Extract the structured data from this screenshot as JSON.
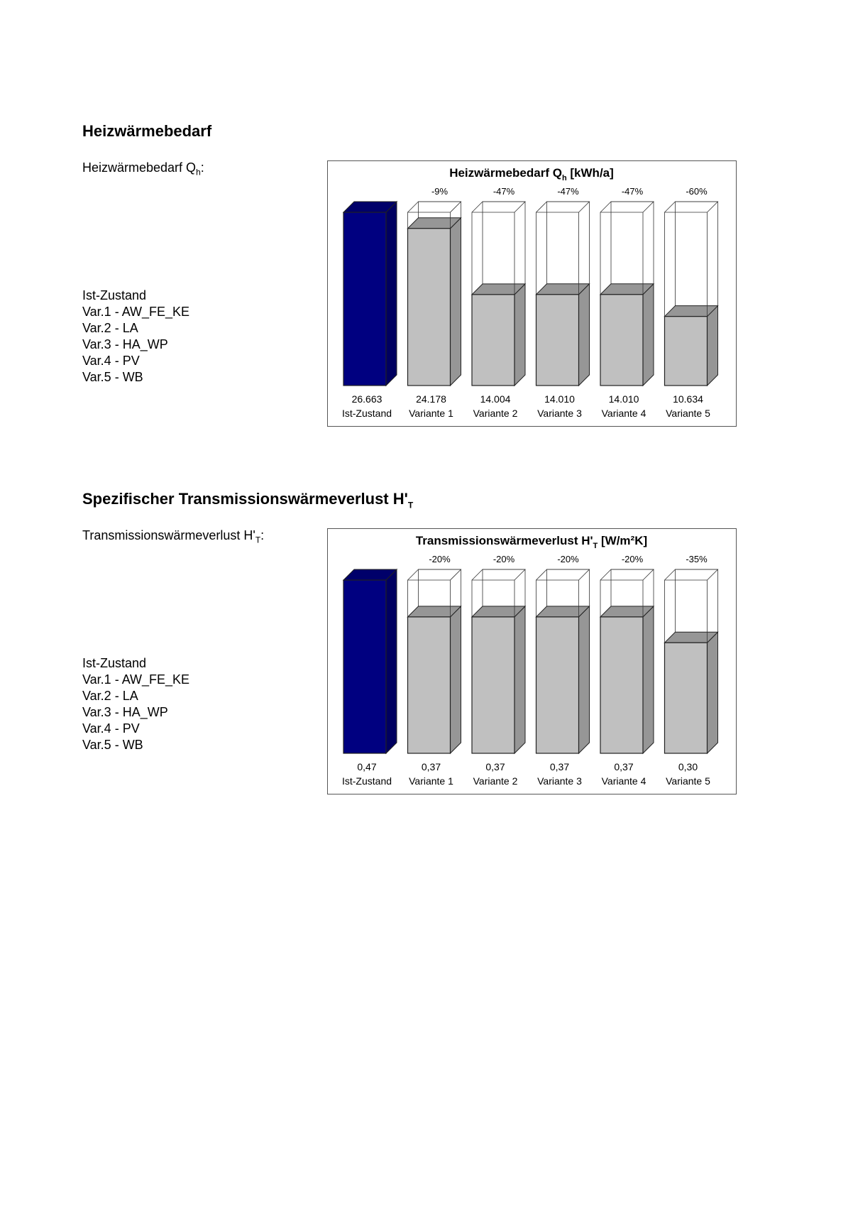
{
  "sections": [
    {
      "heading": "Heizwärmebedarf",
      "heading_sub": "",
      "label": "Heizwärmebedarf Q",
      "label_sub": "h",
      "label_suffix": ":",
      "legend": [
        "Ist-Zustand",
        "Var.1 - AW_FE_KE",
        "Var.2 - LA",
        "Var.3 - HA_WP",
        "Var.4 - PV",
        "Var.5 - WB"
      ]
    },
    {
      "heading": "Spezifischer Transmissionswärmeverlust H'",
      "heading_sub": "T",
      "label": "Transmissionswärmeverlust H'",
      "label_sub": "T",
      "label_suffix": ":",
      "legend": [
        "Ist-Zustand",
        "Var.1 - AW_FE_KE",
        "Var.2 - LA",
        "Var.3 - HA_WP",
        "Var.4 - PV",
        "Var.5 - WB"
      ]
    }
  ],
  "colors": {
    "baseline_bar": "#000080",
    "variant_bar": "#c0c0c0",
    "variant_side": "#969696"
  },
  "chart_data": [
    {
      "type": "bar",
      "title": "Heizwärmebedarf Q",
      "title_sub": "h",
      "title_unit": "[kWh/a]",
      "categories": [
        "Ist-Zustand",
        "Variante 1",
        "Variante 2",
        "Variante 3",
        "Variante 4",
        "Variante 5"
      ],
      "values": [
        26663,
        24178,
        14004,
        14010,
        14010,
        10634
      ],
      "value_labels": [
        "26.663",
        "24.178",
        "14.004",
        "14.010",
        "14.010",
        "10.634"
      ],
      "change_labels": [
        "",
        "-9%",
        "-47%",
        "-47%",
        "-47%",
        "-60%"
      ],
      "ylim": [
        0,
        26663
      ]
    },
    {
      "type": "bar",
      "title": "Transmissionswärmeverlust H'",
      "title_sub": "T",
      "title_unit": "[W/m²K]",
      "categories": [
        "Ist-Zustand",
        "Variante 1",
        "Variante 2",
        "Variante 3",
        "Variante 4",
        "Variante 5"
      ],
      "values": [
        0.47,
        0.37,
        0.37,
        0.37,
        0.37,
        0.3
      ],
      "value_labels": [
        "0,47",
        "0,37",
        "0,37",
        "0,37",
        "0,37",
        "0,30"
      ],
      "change_labels": [
        "",
        "-20%",
        "-20%",
        "-20%",
        "-20%",
        "-35%"
      ],
      "ylim": [
        0,
        0.47
      ]
    }
  ]
}
